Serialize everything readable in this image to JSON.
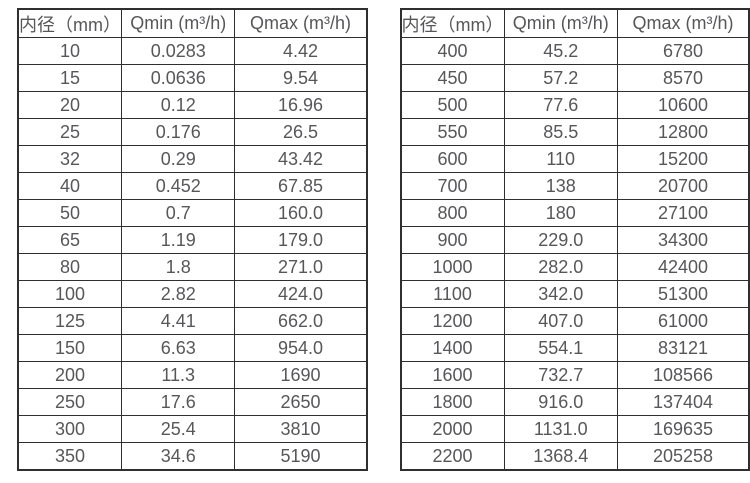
{
  "colors": {
    "border": "#2f2f2f",
    "text": "#57575a",
    "background": "#ffffff"
  },
  "chart_data": [
    {
      "type": "table",
      "title": "",
      "columns": [
        "内径（mm）",
        "Qmin (m³/h)",
        "Qmax (m³/h)"
      ],
      "rows": [
        [
          "10",
          "0.0283",
          "4.42"
        ],
        [
          "15",
          "0.0636",
          "9.54"
        ],
        [
          "20",
          "0.12",
          "16.96"
        ],
        [
          "25",
          "0.176",
          "26.5"
        ],
        [
          "32",
          "0.29",
          "43.42"
        ],
        [
          "40",
          "0.452",
          "67.85"
        ],
        [
          "50",
          "0.7",
          "160.0"
        ],
        [
          "65",
          "1.19",
          "179.0"
        ],
        [
          "80",
          "1.8",
          "271.0"
        ],
        [
          "100",
          "2.82",
          "424.0"
        ],
        [
          "125",
          "4.41",
          "662.0"
        ],
        [
          "150",
          "6.63",
          "954.0"
        ],
        [
          "200",
          "11.3",
          "1690"
        ],
        [
          "250",
          "17.6",
          "2650"
        ],
        [
          "300",
          "25.4",
          "3810"
        ],
        [
          "350",
          "34.6",
          "5190"
        ]
      ]
    },
    {
      "type": "table",
      "title": "",
      "columns": [
        "内径（mm）",
        "Qmin (m³/h)",
        "Qmax (m³/h)"
      ],
      "rows": [
        [
          "400",
          "45.2",
          "6780"
        ],
        [
          "450",
          "57.2",
          "8570"
        ],
        [
          "500",
          "77.6",
          "10600"
        ],
        [
          "550",
          "85.5",
          "12800"
        ],
        [
          "600",
          "110",
          "15200"
        ],
        [
          "700",
          "138",
          "20700"
        ],
        [
          "800",
          "180",
          "27100"
        ],
        [
          "900",
          "229.0",
          "34300"
        ],
        [
          "1000",
          "282.0",
          "42400"
        ],
        [
          "1100",
          "342.0",
          "51300"
        ],
        [
          "1200",
          "407.0",
          "61000"
        ],
        [
          "1400",
          "554.1",
          "83121"
        ],
        [
          "1600",
          "732.7",
          "108566"
        ],
        [
          "1800",
          "916.0",
          "137404"
        ],
        [
          "2000",
          "1131.0",
          "169635"
        ],
        [
          "2200",
          "1368.4",
          "205258"
        ]
      ]
    }
  ]
}
